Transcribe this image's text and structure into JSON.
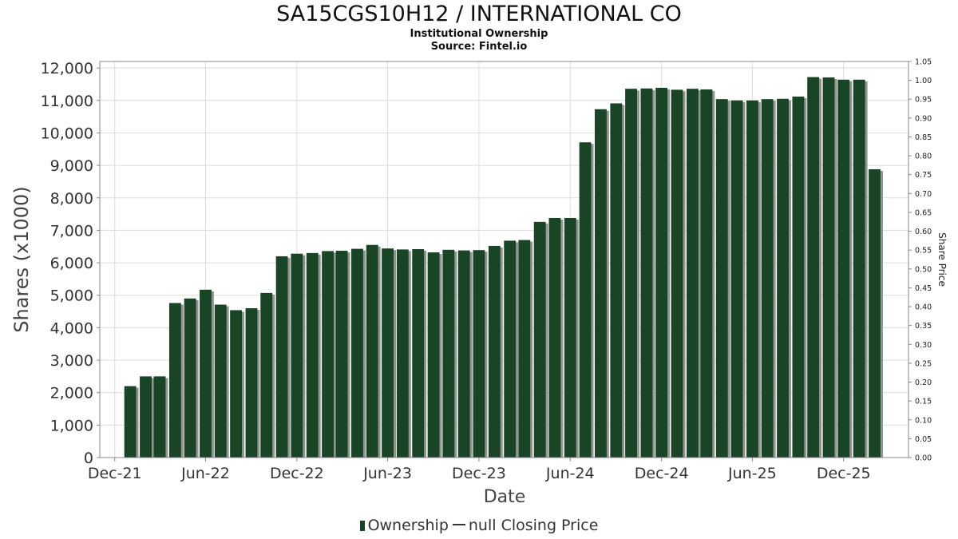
{
  "title": "SA15CGS10H12 / INTERNATIONAL CO",
  "subtitle": "Institutional Ownership",
  "source": "Source: Fintel.io",
  "colors": {
    "bar": "#1a4426",
    "bar_shadow": "#8e948f",
    "grid": "#dcdcdc",
    "axis": "#888888"
  },
  "legend": {
    "ownership_label": "Ownership",
    "price_label": "null Closing Price"
  },
  "chart_data": {
    "type": "bar",
    "title": "SA15CGS10H12 / INTERNATIONAL CO",
    "xlabel": "Date",
    "ylabel": "Shares (x1000)",
    "y2label": "Share Price",
    "ylim": [
      0,
      12200
    ],
    "y2lim": [
      0,
      1.05
    ],
    "x_range": [
      "2021-11-01",
      "2026-04-10"
    ],
    "grid": true,
    "legend_position": "bottom",
    "yticks": [
      0,
      1000,
      2000,
      3000,
      4000,
      5000,
      6000,
      7000,
      8000,
      9000,
      10000,
      11000,
      12000
    ],
    "ytick_labels": [
      "0",
      "1,000",
      "2,000",
      "3,000",
      "4,000",
      "5,000",
      "6,000",
      "7,000",
      "8,000",
      "9,000",
      "10,000",
      "11,000",
      "12,000"
    ],
    "y2ticks": [
      "0.00",
      "0.05",
      "0.10",
      "0.15",
      "0.20",
      "0.25",
      "0.30",
      "0.35",
      "0.40",
      "0.45",
      "0.50",
      "0.55",
      "0.60",
      "0.65",
      "0.70",
      "0.75",
      "0.80",
      "0.85",
      "0.90",
      "0.95",
      "1.00",
      "1.05"
    ],
    "xticks": [
      {
        "date": "2021-12-01",
        "label": "Dec-21"
      },
      {
        "date": "2022-06-01",
        "label": "Jun-22"
      },
      {
        "date": "2022-12-01",
        "label": "Dec-22"
      },
      {
        "date": "2023-06-01",
        "label": "Jun-23"
      },
      {
        "date": "2023-12-01",
        "label": "Dec-23"
      },
      {
        "date": "2024-06-01",
        "label": "Jun-24"
      },
      {
        "date": "2024-12-01",
        "label": "Dec-24"
      },
      {
        "date": "2025-06-01",
        "label": "Jun-25"
      },
      {
        "date": "2025-12-01",
        "label": "Dec-25"
      }
    ],
    "series": [
      {
        "name": "Ownership",
        "x": [
          "2022-01-01",
          "2022-02-01",
          "2022-03-01",
          "2022-04-01",
          "2022-05-01",
          "2022-06-01",
          "2022-07-01",
          "2022-08-01",
          "2022-09-01",
          "2022-10-01",
          "2022-11-01",
          "2022-12-01",
          "2023-01-01",
          "2023-02-01",
          "2023-03-01",
          "2023-04-01",
          "2023-05-01",
          "2023-06-01",
          "2023-07-01",
          "2023-08-01",
          "2023-09-01",
          "2023-10-01",
          "2023-11-01",
          "2023-12-01",
          "2024-01-01",
          "2024-02-01",
          "2024-03-01",
          "2024-04-01",
          "2024-05-01",
          "2024-06-01",
          "2024-07-01",
          "2024-08-01",
          "2024-09-01",
          "2024-10-01",
          "2024-11-01",
          "2024-12-01",
          "2025-01-01",
          "2025-02-01",
          "2025-03-01",
          "2025-04-01",
          "2025-05-01",
          "2025-06-01",
          "2025-07-01",
          "2025-08-01",
          "2025-09-01",
          "2025-10-01",
          "2025-11-01",
          "2025-12-01",
          "2026-01-01",
          "2026-02-01"
        ],
        "values": [
          2200,
          2500,
          2500,
          4760,
          4900,
          5170,
          4710,
          4540,
          4600,
          5070,
          6200,
          6280,
          6300,
          6360,
          6370,
          6430,
          6550,
          6440,
          6410,
          6420,
          6320,
          6400,
          6380,
          6390,
          6520,
          6680,
          6700,
          7260,
          7380,
          7380,
          9710,
          10730,
          10910,
          11360,
          11370,
          11390,
          11330,
          11360,
          11340,
          11040,
          11000,
          11000,
          11040,
          11050,
          11120,
          11720,
          11710,
          11640,
          11640,
          8880
        ]
      }
    ]
  }
}
